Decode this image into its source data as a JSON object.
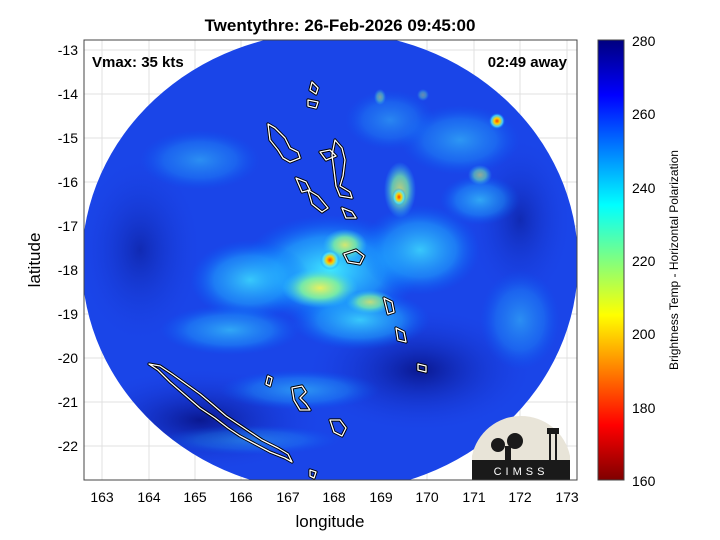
{
  "title": "Twentythre: 26-Feb-2026 09:45:00",
  "vmax_label": "Vmax: 35 kts",
  "time_away_label": "02:49 away",
  "xlabel": "longitude",
  "ylabel": "latitude",
  "xticks": [
    "163",
    "164",
    "165",
    "166",
    "167",
    "168",
    "169",
    "170",
    "171",
    "172",
    "173"
  ],
  "yticks": [
    "-13",
    "-14",
    "-15",
    "-16",
    "-17",
    "-18",
    "-19",
    "-20",
    "-21",
    "-22"
  ],
  "colorbar": {
    "label": "Brightness Temp - Horizontal Polarization",
    "ticks": [
      "280",
      "260",
      "240",
      "220",
      "200",
      "180",
      "160"
    ],
    "colors": [
      "#00007f",
      "#0000ff",
      "#0080ff",
      "#00ffff",
      "#80ff80",
      "#ffff00",
      "#ff8000",
      "#ff0000",
      "#7f0000"
    ]
  },
  "logo": {
    "text": "CIMSS"
  }
}
